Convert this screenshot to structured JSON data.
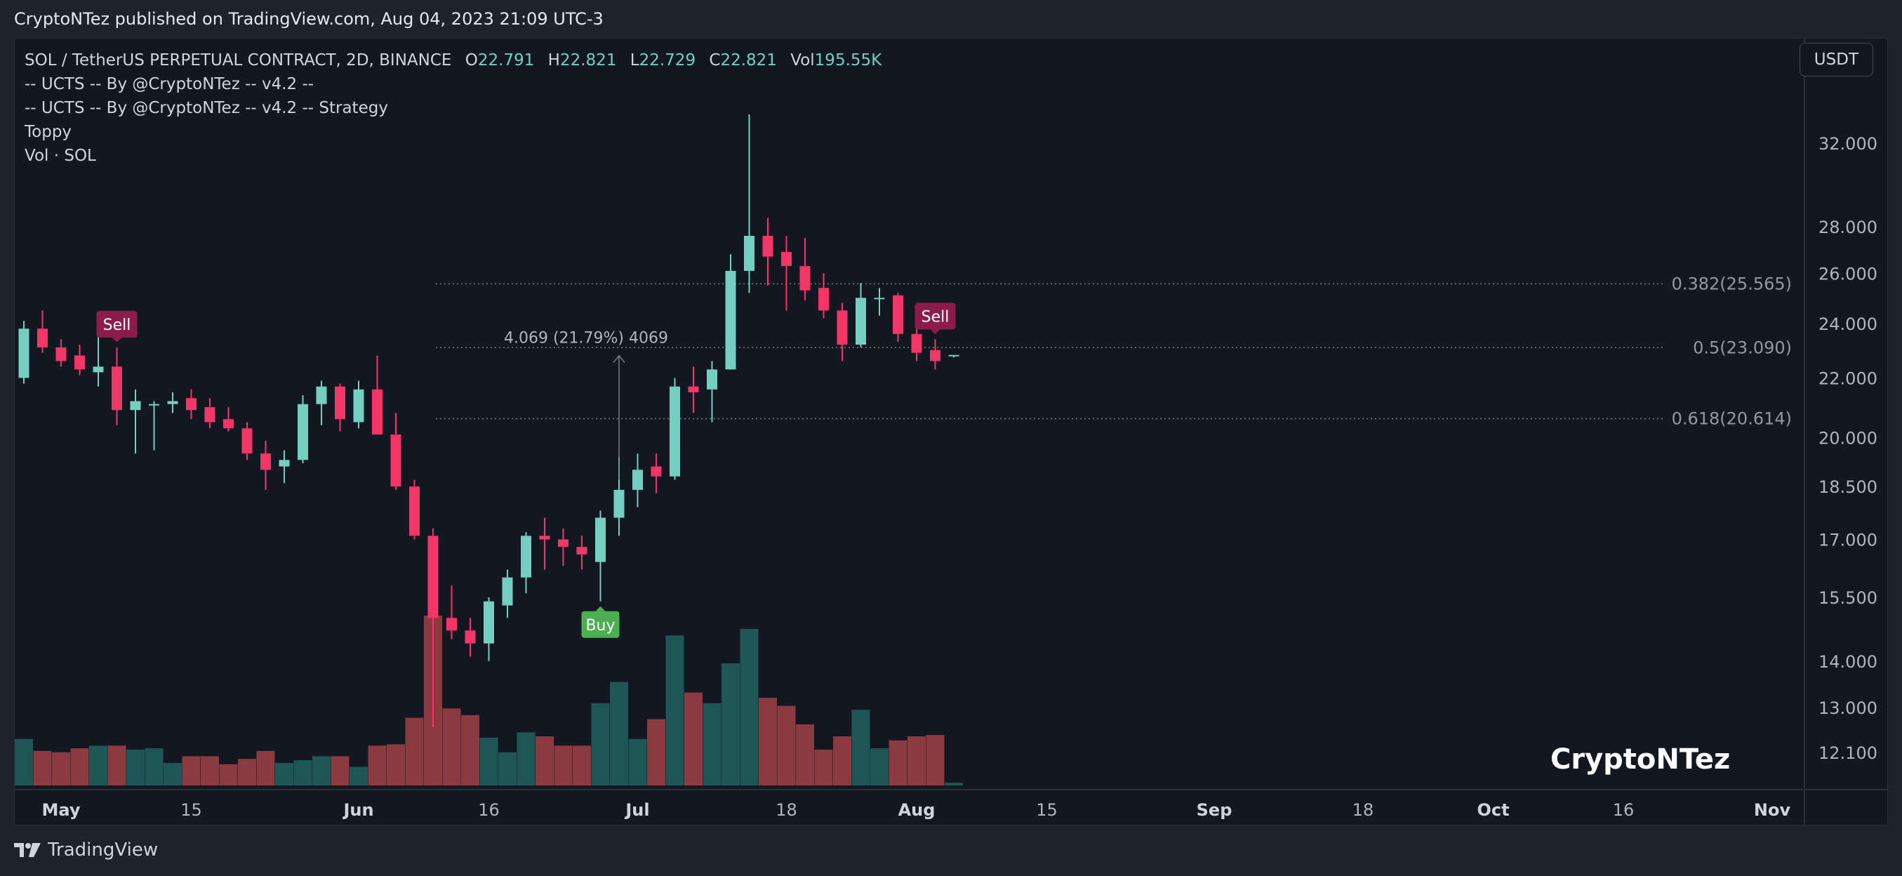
{
  "header": {
    "published_text": "CryptoNTez published on TradingView.com, Aug 04, 2023 21:09 UTC-3"
  },
  "legend": {
    "symbol": "SOL / TetherUS PERPETUAL CONTRACT, 2D, BINANCE",
    "open_label": "O",
    "open": "22.791",
    "high_label": "H",
    "high": "22.821",
    "low_label": "L",
    "low": "22.729",
    "close_label": "C",
    "close": "22.821",
    "vol_label": "Vol",
    "vol": "195.55K",
    "indicators": [
      "-- UCTS -- By @CryptoNTez -- v4.2 --",
      "-- UCTS -- By @CryptoNTez -- v4.2 -- Strategy",
      "Toppy",
      "Vol · SOL"
    ]
  },
  "unit_button": "USDT",
  "watermark": "CryptoNTez",
  "footer": {
    "brand": "TradingView"
  },
  "colors": {
    "up": "#74cfc0",
    "down": "#f23768",
    "vol_up": "#1e5656",
    "vol_down": "#8b3a40",
    "buy": "#4caf50",
    "sell": "#8c1d4b",
    "grid_text": "#b2b5be"
  },
  "chart_data": {
    "type": "candlestick",
    "timeframe": "2D",
    "y_axis": {
      "scale": "log",
      "ticks": [
        "32.000",
        "28.000",
        "26.000",
        "24.000",
        "22.000",
        "20.000",
        "18.500",
        "17.000",
        "15.500",
        "14.000",
        "13.000",
        "12.100"
      ]
    },
    "x_axis": {
      "ticks": [
        {
          "label": "May",
          "index": 2,
          "bold": true
        },
        {
          "label": "15",
          "index": 9,
          "bold": false
        },
        {
          "label": "Jun",
          "index": 18,
          "bold": true
        },
        {
          "label": "16",
          "index": 25,
          "bold": false
        },
        {
          "label": "Jul",
          "index": 33,
          "bold": true
        },
        {
          "label": "18",
          "index": 41,
          "bold": false
        },
        {
          "label": "Aug",
          "index": 48,
          "bold": true
        },
        {
          "label": "15",
          "index": 55,
          "bold": false
        },
        {
          "label": "Sep",
          "index": 64,
          "bold": true
        },
        {
          "label": "18",
          "index": 72,
          "bold": false
        },
        {
          "label": "Oct",
          "index": 79,
          "bold": true
        },
        {
          "label": "16",
          "index": 86,
          "bold": false
        },
        {
          "label": "Nov",
          "index": 94,
          "bold": true
        }
      ]
    },
    "candles": [
      {
        "o": 22.0,
        "h": 24.1,
        "l": 21.8,
        "c": 23.8
      },
      {
        "o": 23.8,
        "h": 24.5,
        "l": 22.9,
        "c": 23.1
      },
      {
        "o": 23.1,
        "h": 23.4,
        "l": 22.4,
        "c": 22.6
      },
      {
        "o": 22.8,
        "h": 23.2,
        "l": 22.1,
        "c": 22.3
      },
      {
        "o": 22.2,
        "h": 23.8,
        "l": 21.7,
        "c": 22.4
      },
      {
        "o": 22.4,
        "h": 23.1,
        "l": 20.4,
        "c": 20.9
      },
      {
        "o": 20.9,
        "h": 21.6,
        "l": 19.5,
        "c": 21.2
      },
      {
        "o": 21.1,
        "h": 21.2,
        "l": 19.6,
        "c": 21.1
      },
      {
        "o": 21.1,
        "h": 21.5,
        "l": 20.8,
        "c": 21.2
      },
      {
        "o": 21.3,
        "h": 21.6,
        "l": 20.6,
        "c": 20.9
      },
      {
        "o": 21.0,
        "h": 21.3,
        "l": 20.3,
        "c": 20.5
      },
      {
        "o": 20.6,
        "h": 21.0,
        "l": 20.2,
        "c": 20.3
      },
      {
        "o": 20.3,
        "h": 20.5,
        "l": 19.3,
        "c": 19.5
      },
      {
        "o": 19.5,
        "h": 19.9,
        "l": 18.4,
        "c": 19.0
      },
      {
        "o": 19.1,
        "h": 19.6,
        "l": 18.6,
        "c": 19.3
      },
      {
        "o": 19.3,
        "h": 21.4,
        "l": 19.2,
        "c": 21.1
      },
      {
        "o": 21.1,
        "h": 21.9,
        "l": 20.4,
        "c": 21.7
      },
      {
        "o": 21.7,
        "h": 21.8,
        "l": 20.2,
        "c": 20.6
      },
      {
        "o": 20.5,
        "h": 21.9,
        "l": 20.3,
        "c": 21.6
      },
      {
        "o": 21.6,
        "h": 22.8,
        "l": 20.3,
        "c": 20.1
      },
      {
        "o": 20.1,
        "h": 20.8,
        "l": 18.4,
        "c": 18.5
      },
      {
        "o": 18.5,
        "h": 18.7,
        "l": 17.0,
        "c": 17.1
      },
      {
        "o": 17.1,
        "h": 17.3,
        "l": 12.6,
        "c": 15.0
      },
      {
        "o": 15.0,
        "h": 15.8,
        "l": 14.5,
        "c": 14.7
      },
      {
        "o": 14.7,
        "h": 15.0,
        "l": 14.1,
        "c": 14.4
      },
      {
        "o": 14.4,
        "h": 15.5,
        "l": 14.0,
        "c": 15.4
      },
      {
        "o": 15.3,
        "h": 16.2,
        "l": 15.0,
        "c": 16.0
      },
      {
        "o": 16.0,
        "h": 17.2,
        "l": 15.6,
        "c": 17.1
      },
      {
        "o": 17.1,
        "h": 17.6,
        "l": 16.2,
        "c": 17.0
      },
      {
        "o": 17.0,
        "h": 17.3,
        "l": 16.3,
        "c": 16.8
      },
      {
        "o": 16.8,
        "h": 17.1,
        "l": 16.2,
        "c": 16.6
      },
      {
        "o": 16.4,
        "h": 17.8,
        "l": 15.4,
        "c": 17.6
      },
      {
        "o": 17.6,
        "h": 19.4,
        "l": 17.1,
        "c": 18.4
      },
      {
        "o": 18.4,
        "h": 19.5,
        "l": 17.9,
        "c": 19.0
      },
      {
        "o": 19.1,
        "h": 19.5,
        "l": 18.3,
        "c": 18.8
      },
      {
        "o": 18.8,
        "h": 22.0,
        "l": 18.7,
        "c": 21.7
      },
      {
        "o": 21.7,
        "h": 22.4,
        "l": 20.8,
        "c": 21.5
      },
      {
        "o": 21.6,
        "h": 22.6,
        "l": 20.5,
        "c": 22.3
      },
      {
        "o": 22.3,
        "h": 26.8,
        "l": 22.3,
        "c": 26.1
      },
      {
        "o": 26.1,
        "h": 33.5,
        "l": 25.2,
        "c": 27.6
      },
      {
        "o": 27.6,
        "h": 28.4,
        "l": 25.5,
        "c": 26.7
      },
      {
        "o": 26.9,
        "h": 27.6,
        "l": 24.5,
        "c": 26.3
      },
      {
        "o": 26.3,
        "h": 27.5,
        "l": 24.9,
        "c": 25.3
      },
      {
        "o": 25.4,
        "h": 26.0,
        "l": 24.2,
        "c": 24.5
      },
      {
        "o": 24.5,
        "h": 24.8,
        "l": 22.6,
        "c": 23.2
      },
      {
        "o": 23.2,
        "h": 25.6,
        "l": 23.1,
        "c": 25.0
      },
      {
        "o": 25.0,
        "h": 25.4,
        "l": 24.3,
        "c": 25.0
      },
      {
        "o": 25.1,
        "h": 25.2,
        "l": 23.3,
        "c": 23.6
      },
      {
        "o": 23.6,
        "h": 24.2,
        "l": 22.6,
        "c": 22.9
      },
      {
        "o": 23.0,
        "h": 23.4,
        "l": 22.3,
        "c": 22.6
      },
      {
        "o": 22.791,
        "h": 22.821,
        "l": 22.729,
        "c": 22.821
      }
    ],
    "volume": [
      35,
      26,
      25,
      28,
      30,
      30,
      27,
      28,
      17,
      22,
      22,
      16,
      20,
      26,
      17,
      19,
      22,
      22,
      14,
      30,
      31,
      51,
      128,
      58,
      53,
      36,
      25,
      40,
      37,
      30,
      30,
      62,
      78,
      35,
      50,
      113,
      70,
      62,
      92,
      118,
      66,
      60,
      46,
      27,
      37,
      57,
      28,
      34,
      37,
      38,
      2
    ],
    "fib_levels": [
      {
        "ratio": "0.382",
        "price": 25.565,
        "label": "0.382(25.565)"
      },
      {
        "ratio": "0.5",
        "price": 23.09,
        "label": "0.5(23.090)"
      },
      {
        "ratio": "0.618",
        "price": 20.614,
        "label": "0.618(20.614)"
      }
    ],
    "signals": [
      {
        "type": "Sell",
        "index": 5
      },
      {
        "type": "Buy",
        "index": 31
      },
      {
        "type": "Sell",
        "index": 49
      }
    ],
    "measure": {
      "label": "4.069 (21.79%) 4069",
      "from_index": 32,
      "from_price": 18.7,
      "to_price": 22.8
    }
  }
}
